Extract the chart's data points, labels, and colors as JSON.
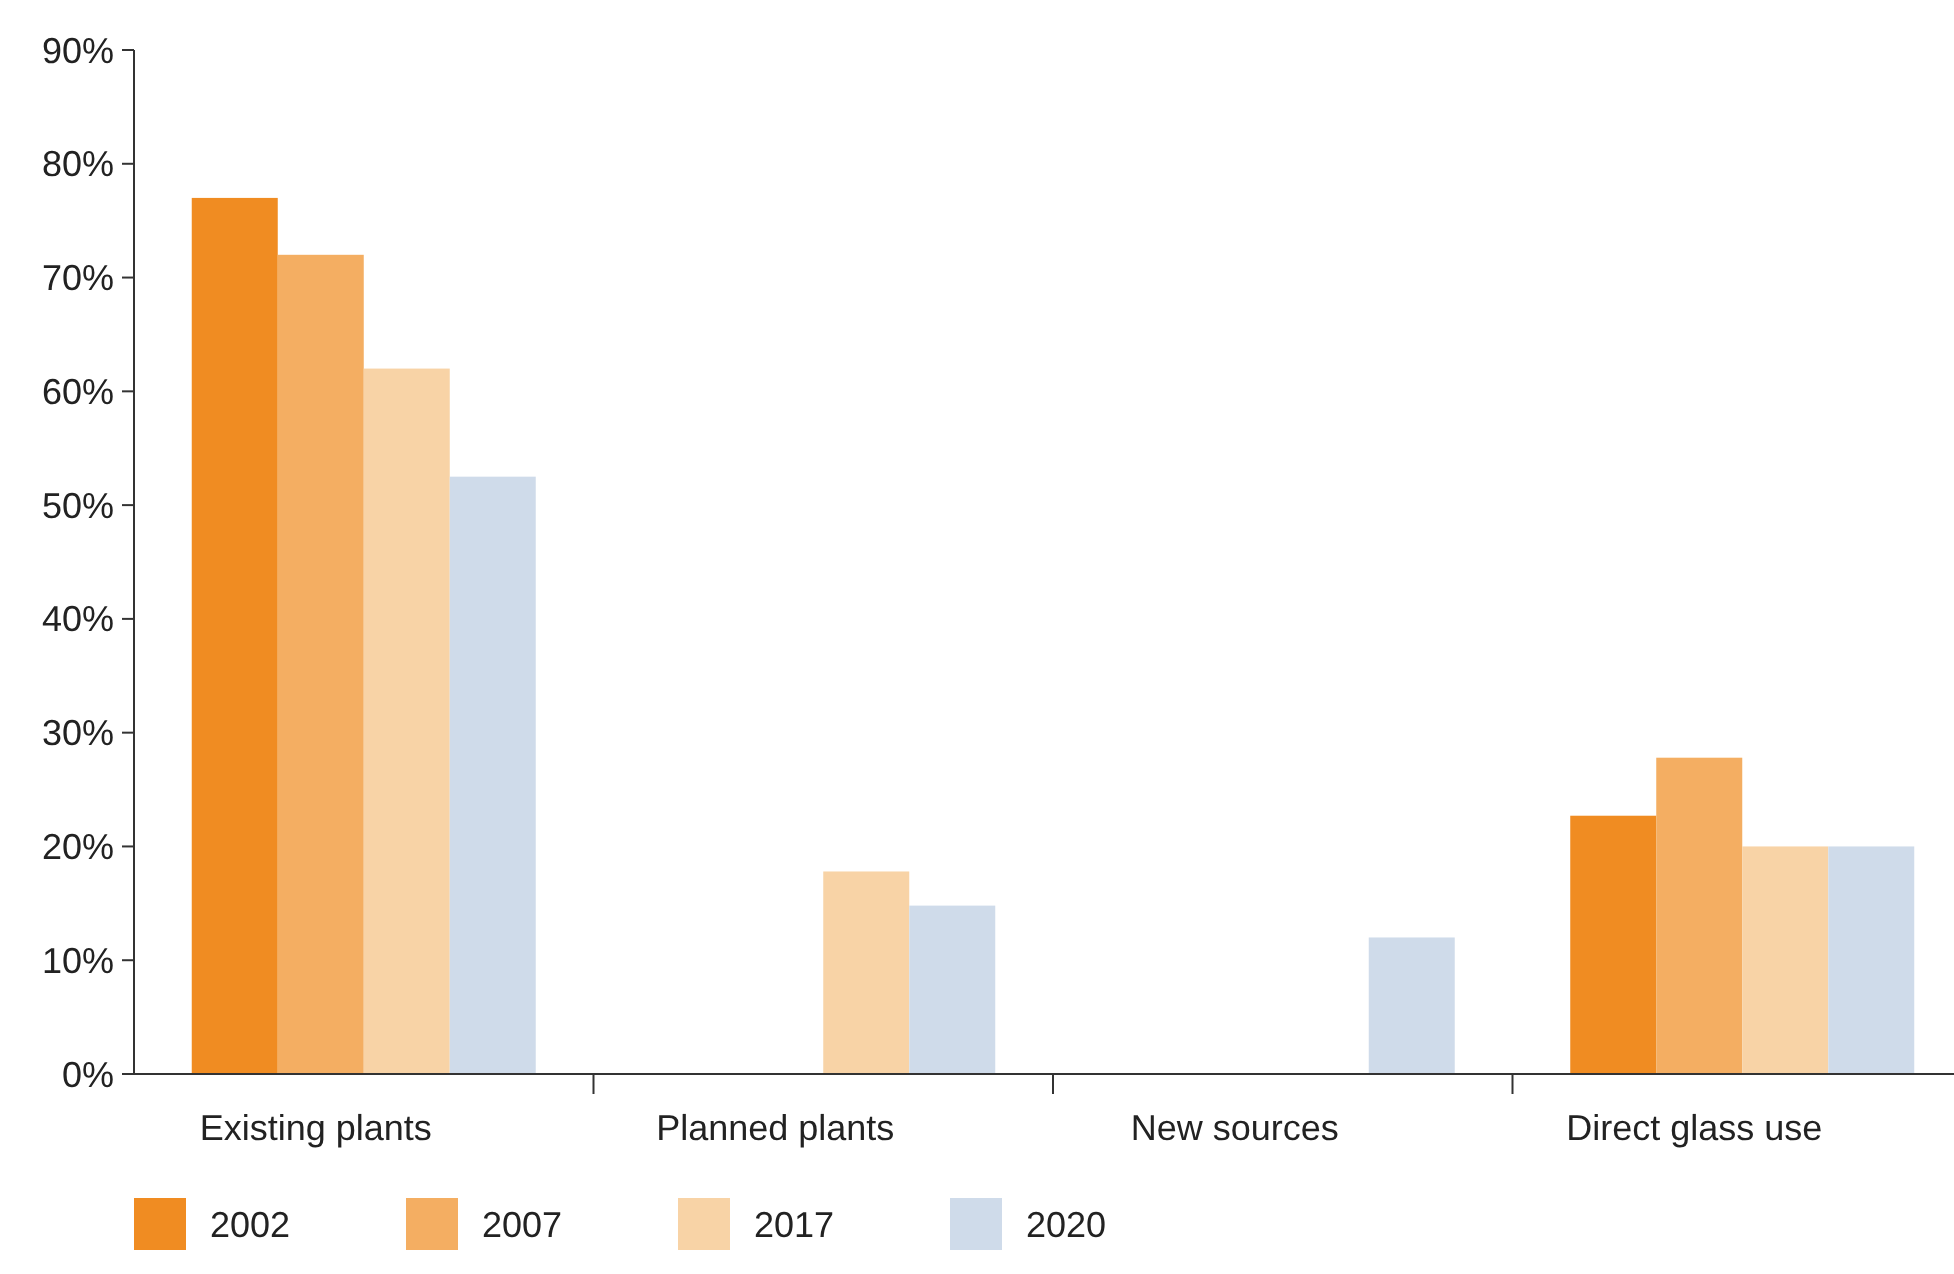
{
  "chart_data": {
    "type": "bar",
    "categories": [
      "Existing plants",
      "Planned plants",
      "New sources",
      "Direct glass use"
    ],
    "series": [
      {
        "name": "2002",
        "color": "#f08c22",
        "values": [
          77,
          0,
          0,
          22.7
        ]
      },
      {
        "name": "2007",
        "color": "#f4ae62",
        "values": [
          72,
          0,
          0,
          27.8
        ]
      },
      {
        "name": "2017",
        "color": "#f8d3a6",
        "values": [
          62,
          17.8,
          0,
          20
        ]
      },
      {
        "name": "2020",
        "color": "#cfdbea",
        "values": [
          52.5,
          14.8,
          12,
          20
        ]
      }
    ],
    "ylim": [
      0,
      90
    ],
    "yticks": [
      {
        "value": 0,
        "label": "0%"
      },
      {
        "value": 10,
        "label": "10%"
      },
      {
        "value": 20,
        "label": "20%"
      },
      {
        "value": 30,
        "label": "30%"
      },
      {
        "value": 40,
        "label": "40%"
      },
      {
        "value": 50,
        "label": "50%"
      },
      {
        "value": 60,
        "label": "60%"
      },
      {
        "value": 70,
        "label": "70%"
      },
      {
        "value": 80,
        "label": "80%"
      },
      {
        "value": 90,
        "label": "90%"
      }
    ],
    "grid": false,
    "legend": "bottom left"
  }
}
